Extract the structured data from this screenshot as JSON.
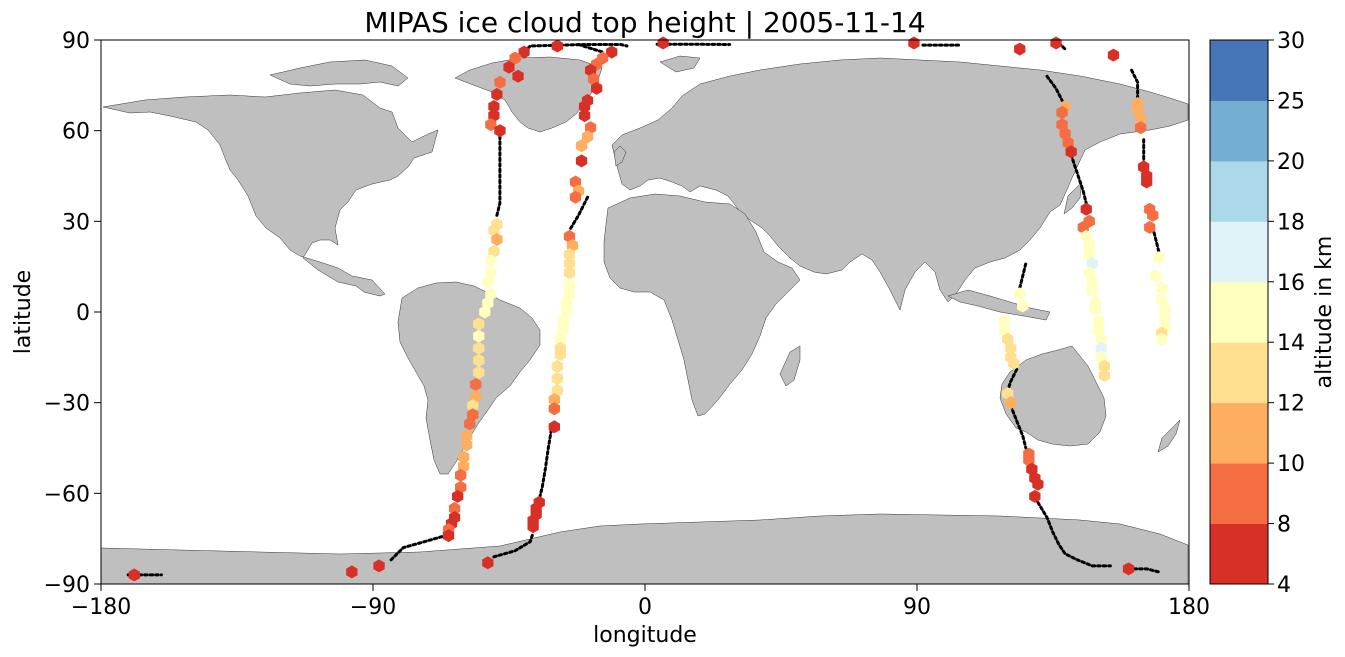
{
  "chart_data": {
    "type": "scatter",
    "title": "MIPAS ice cloud top height | 2005-11-14",
    "xlabel": "longitude",
    "ylabel": "latitude",
    "xlim": [
      -180,
      180
    ],
    "ylim": [
      -90,
      90
    ],
    "xticks": [
      "−180",
      "−90",
      "0",
      "90",
      "180"
    ],
    "yticks": [
      "−90",
      "−60",
      "−30",
      "0",
      "30",
      "60",
      "90"
    ],
    "colorbar": {
      "label": "altitude in km",
      "boundaries": [
        4,
        8,
        10,
        12,
        14,
        16,
        18,
        20,
        25,
        30
      ],
      "tick_labels": [
        "4",
        "8",
        "10",
        "12",
        "14",
        "16",
        "18",
        "20",
        "25",
        "30"
      ],
      "colors": [
        "#a50026",
        "#d73027",
        "#f46d43",
        "#fdae61",
        "#fee090",
        "#ffffbf",
        "#e0f3f8",
        "#abd9e9",
        "#74add1",
        "#4575b4",
        "#313695"
      ]
    },
    "land_color": "#bfbfbf",
    "track_color": "#000000",
    "series": [
      {
        "points": [
          [
            -40,
            86,
            9
          ],
          [
            -43,
            84,
            11
          ],
          [
            -45,
            81,
            8
          ],
          [
            -42,
            78,
            9
          ],
          [
            -48,
            76,
            10
          ],
          [
            -49,
            72,
            9
          ],
          [
            -50,
            68,
            8
          ],
          [
            -50,
            65,
            9
          ],
          [
            -51,
            62,
            10
          ],
          [
            -48,
            60,
            8
          ],
          [
            -49,
            29,
            14
          ],
          [
            -50,
            27,
            14
          ],
          [
            -49,
            24,
            13
          ],
          [
            -50,
            20,
            15
          ],
          [
            -51,
            17,
            16
          ],
          [
            -51,
            13,
            16
          ],
          [
            -52,
            10,
            16
          ],
          [
            -51,
            6,
            16
          ],
          [
            -52,
            3,
            16
          ],
          [
            -53,
            0,
            16
          ],
          [
            -55,
            -4,
            15
          ],
          [
            -55,
            -8,
            16
          ],
          [
            -55,
            -12,
            15
          ],
          [
            -55,
            -16,
            15
          ],
          [
            -55,
            -20,
            14
          ],
          [
            -56,
            -24,
            11
          ],
          [
            -56,
            -28,
            13
          ],
          [
            -57,
            -31,
            14
          ],
          [
            -57,
            -34,
            11
          ],
          [
            -58,
            -37,
            11
          ],
          [
            -59,
            -41,
            13
          ],
          [
            -59,
            -44,
            13
          ],
          [
            -60,
            -48,
            12
          ],
          [
            -60,
            -51,
            12
          ],
          [
            -61,
            -54,
            11
          ],
          [
            -61,
            -58,
            11
          ],
          [
            -62,
            -61,
            9
          ],
          [
            -63,
            -65,
            11
          ],
          [
            -63,
            -68,
            9
          ],
          [
            -64,
            -70,
            9
          ],
          [
            -65,
            -72,
            10
          ],
          [
            -65,
            -74,
            9
          ]
        ]
      },
      {
        "points": [
          [
            -29,
            88,
            9
          ],
          [
            -11,
            86,
            9
          ],
          [
            -14,
            84,
            11
          ],
          [
            -16,
            82,
            11
          ],
          [
            -18,
            80,
            9
          ],
          [
            -17,
            77,
            11
          ],
          [
            -16,
            74,
            9
          ],
          [
            -19,
            70,
            8
          ],
          [
            -20,
            68,
            8
          ],
          [
            -20,
            65,
            9
          ],
          [
            -18,
            61,
            11
          ],
          [
            -19,
            58,
            12
          ],
          [
            -21,
            55,
            13
          ],
          [
            -21,
            50,
            8
          ],
          [
            -23,
            43,
            11
          ],
          [
            -22,
            40,
            12
          ],
          [
            -23,
            38,
            11
          ],
          [
            -25,
            25,
            11
          ],
          [
            -24,
            22,
            13
          ],
          [
            -25,
            19,
            15
          ],
          [
            -25,
            16,
            15
          ],
          [
            -25,
            13,
            15
          ],
          [
            -25,
            9,
            16
          ],
          [
            -25,
            6,
            16
          ],
          [
            -26,
            3,
            16
          ],
          [
            -26,
            0,
            16
          ],
          [
            -27,
            -3,
            16
          ],
          [
            -27,
            -6,
            16
          ],
          [
            -28,
            -9,
            16
          ],
          [
            -28,
            -12,
            15
          ],
          [
            -28,
            -14,
            15
          ],
          [
            -29,
            -18,
            14
          ],
          [
            -29,
            -22,
            14
          ],
          [
            -29,
            -26,
            14
          ],
          [
            -30,
            -29,
            13
          ],
          [
            -30,
            -32,
            11
          ],
          [
            -30,
            -38,
            9
          ],
          [
            -35,
            -63,
            8
          ],
          [
            -36,
            -65,
            8
          ],
          [
            -36,
            -67,
            8
          ],
          [
            -37,
            -69,
            8
          ],
          [
            -37,
            -71,
            8
          ]
        ]
      },
      {
        "points": [
          [
            -169,
            -87,
            8
          ],
          [
            -97,
            -86,
            8
          ],
          [
            -88,
            -84,
            8
          ],
          [
            -52,
            -83,
            8
          ],
          [
            6,
            89,
            9
          ],
          [
            89,
            89,
            9
          ]
        ]
      },
      {
        "points": [
          [
            124,
            87,
            9
          ],
          [
            136,
            89,
            9
          ],
          [
            139,
            68,
            13
          ],
          [
            138,
            66,
            10
          ],
          [
            138,
            62,
            11
          ],
          [
            139,
            59,
            11
          ],
          [
            140,
            56,
            11
          ],
          [
            141,
            53,
            9
          ],
          [
            146,
            34,
            9
          ],
          [
            147,
            30,
            11
          ],
          [
            145,
            28,
            11
          ],
          [
            146,
            25,
            16
          ],
          [
            147,
            22,
            16
          ],
          [
            147,
            19,
            17
          ],
          [
            148,
            16,
            18
          ],
          [
            147,
            13,
            16
          ],
          [
            148,
            10,
            16
          ],
          [
            148,
            7,
            16
          ],
          [
            149,
            3,
            16
          ],
          [
            149,
            1,
            16
          ],
          [
            150,
            -3,
            16
          ],
          [
            150,
            -6,
            16
          ],
          [
            151,
            -9,
            16
          ],
          [
            151,
            -12,
            18
          ],
          [
            151,
            -15,
            16
          ],
          [
            152,
            -18,
            15
          ],
          [
            152,
            -21,
            15
          ],
          [
            120,
            -27,
            14
          ],
          [
            121,
            -30,
            12
          ],
          [
            127,
            -47,
            11
          ],
          [
            127,
            -49,
            11
          ],
          [
            128,
            -52,
            9
          ],
          [
            129,
            -55,
            9
          ],
          [
            130,
            -57,
            9
          ],
          [
            129,
            -61,
            9
          ]
        ]
      },
      {
        "points": [
          [
            155,
            85,
            8
          ],
          [
            160,
            -85,
            8
          ],
          [
            163,
            69,
            13
          ],
          [
            163,
            67,
            12
          ],
          [
            164,
            64,
            12
          ],
          [
            164,
            61,
            11
          ],
          [
            165,
            48,
            9
          ],
          [
            166,
            45,
            9
          ],
          [
            166,
            43,
            8
          ],
          [
            167,
            34,
            11
          ],
          [
            168,
            32,
            11
          ],
          [
            167,
            28,
            11
          ],
          [
            170,
            18,
            17
          ],
          [
            169,
            12,
            17
          ],
          [
            171,
            8,
            16
          ],
          [
            171,
            4,
            16
          ],
          [
            172,
            1,
            16
          ],
          [
            172,
            -2,
            16
          ],
          [
            172,
            -5,
            16
          ],
          [
            171,
            -7,
            15
          ],
          [
            171,
            -9,
            16
          ]
        ]
      },
      {
        "points": [
          [
            119,
            -3,
            16
          ],
          [
            119,
            -6,
            16
          ],
          [
            120,
            -9,
            15
          ],
          [
            121,
            -12,
            15
          ],
          [
            121,
            -15,
            15
          ],
          [
            122,
            -17,
            15
          ],
          [
            124,
            6,
            16
          ],
          [
            125,
            2,
            16
          ]
        ]
      }
    ],
    "tracks": [
      [
        [
          -171,
          -87
        ],
        [
          -165,
          -87
        ],
        [
          -160,
          -87
        ]
      ],
      [
        [
          -40,
          86
        ],
        [
          -38,
          88
        ],
        [
          -20,
          88.5
        ],
        [
          -8,
          88.5
        ],
        [
          -6,
          88
        ]
      ],
      [
        [
          4,
          88.6
        ],
        [
          15,
          88.6
        ],
        [
          28,
          88.5
        ]
      ],
      [
        [
          92,
          88.3
        ],
        [
          104,
          88.3
        ]
      ],
      [
        [
          137,
          89
        ],
        [
          139,
          87
        ]
      ],
      [
        [
          -48,
          60
        ],
        [
          -48,
          50
        ],
        [
          -48,
          42
        ],
        [
          -48,
          36
        ],
        [
          -49,
          32
        ]
      ],
      [
        [
          -50,
          -81
        ],
        [
          -43,
          -79
        ],
        [
          -38,
          -76
        ],
        [
          -37,
          -73
        ]
      ],
      [
        [
          -84,
          -82
        ],
        [
          -80,
          -78
        ],
        [
          -73,
          -76
        ],
        [
          -66,
          -74
        ]
      ],
      [
        [
          -22,
          88.5
        ],
        [
          -14,
          86
        ]
      ],
      [
        [
          -19,
          38
        ],
        [
          -22,
          32
        ],
        [
          -25,
          27
        ]
      ],
      [
        [
          -31,
          -39
        ],
        [
          -32,
          -45
        ],
        [
          -33,
          -52
        ],
        [
          -34,
          -58
        ],
        [
          -35,
          -62
        ]
      ],
      [
        [
          -27,
          -3
        ],
        [
          -26,
          -1
        ]
      ],
      [
        [
          133,
          78
        ],
        [
          136,
          74
        ],
        [
          138,
          70
        ]
      ],
      [
        [
          141,
          52
        ],
        [
          143,
          46
        ],
        [
          145,
          40
        ],
        [
          146,
          36
        ]
      ],
      [
        [
          121,
          -31
        ],
        [
          123,
          -36
        ],
        [
          125,
          -41
        ],
        [
          126,
          -45
        ]
      ],
      [
        [
          130,
          -63
        ],
        [
          133,
          -68
        ],
        [
          135,
          -73
        ],
        [
          137,
          -77
        ],
        [
          139,
          -80
        ],
        [
          143,
          -82
        ],
        [
          148,
          -84
        ],
        [
          154,
          -84
        ]
      ],
      [
        [
          124,
          8
        ],
        [
          125,
          12
        ],
        [
          126,
          16
        ]
      ],
      [
        [
          161,
          80
        ],
        [
          163,
          76
        ],
        [
          163,
          72
        ],
        [
          163,
          70
        ]
      ],
      [
        [
          165,
          57
        ],
        [
          165,
          52
        ],
        [
          165,
          49
        ]
      ],
      [
        [
          168,
          28
        ],
        [
          169,
          24
        ],
        [
          170,
          20
        ]
      ],
      [
        [
          160,
          -85
        ],
        [
          166,
          -85
        ],
        [
          170,
          -86
        ]
      ],
      [
        [
          123,
          -19
        ],
        [
          121,
          -23
        ],
        [
          120,
          -26
        ]
      ]
    ]
  }
}
